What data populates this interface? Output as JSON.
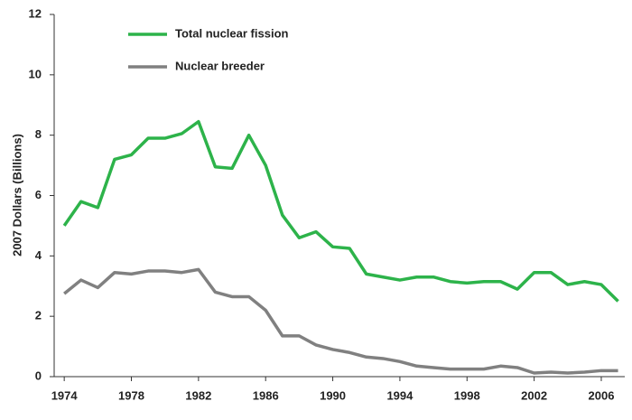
{
  "chart_data": {
    "type": "line",
    "ylabel": "2007 Dollars (Billions)",
    "x": [
      1974,
      1975,
      1976,
      1977,
      1978,
      1979,
      1980,
      1981,
      1982,
      1983,
      1984,
      1985,
      1986,
      1987,
      1988,
      1989,
      1990,
      1991,
      1992,
      1993,
      1994,
      1995,
      1996,
      1997,
      1998,
      1999,
      2000,
      2001,
      2002,
      2003,
      2004,
      2005,
      2006,
      2007
    ],
    "series": [
      {
        "name": "Total nuclear fission",
        "color": "#2db34a",
        "values": [
          5.0,
          5.8,
          5.6,
          7.2,
          7.35,
          7.9,
          7.9,
          8.05,
          8.45,
          6.95,
          6.9,
          8.0,
          7.0,
          5.35,
          4.6,
          4.8,
          4.3,
          4.25,
          3.4,
          3.3,
          3.2,
          3.3,
          3.3,
          3.15,
          3.1,
          3.15,
          3.15,
          2.9,
          3.45,
          3.45,
          3.05,
          3.15,
          3.05,
          2.5
        ]
      },
      {
        "name": "Nuclear breeder",
        "color": "#808080",
        "values": [
          2.75,
          3.2,
          2.95,
          3.45,
          3.4,
          3.5,
          3.5,
          3.45,
          3.55,
          2.8,
          2.65,
          2.65,
          2.2,
          1.35,
          1.35,
          1.05,
          0.9,
          0.8,
          0.65,
          0.6,
          0.5,
          0.35,
          0.3,
          0.25,
          0.25,
          0.25,
          0.35,
          0.3,
          0.12,
          0.15,
          0.12,
          0.15,
          0.2,
          0.2
        ]
      }
    ],
    "xlim": [
      1973.4,
      2007.4
    ],
    "xticks": [
      1974,
      1978,
      1982,
      1986,
      1990,
      1994,
      1998,
      2002,
      2006
    ],
    "ylim": [
      0,
      12
    ],
    "yticks": [
      0,
      2,
      4,
      6,
      8,
      10,
      12
    ],
    "grid": false,
    "legend": "upper left"
  }
}
